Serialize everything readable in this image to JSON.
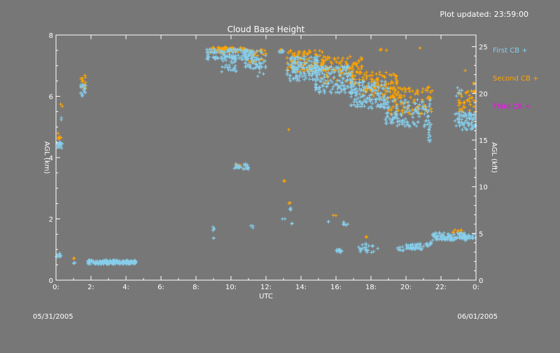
{
  "header": {
    "updated": "Plot updated: 23:59:00",
    "date_start": "05/31/2005",
    "date_end": "06/01/2005"
  },
  "colors": {
    "background": "#777777",
    "first": "#87ceeb",
    "second": "#ffa500",
    "third": "#ff00ff",
    "axes": "#ffffff"
  },
  "chart_data": {
    "type": "scatter",
    "title": "Cloud Base Height",
    "xlabel": "UTC",
    "ylabel": "AGL (km)",
    "y2label": "AGL (kft)",
    "xlim": [
      0,
      24
    ],
    "ylim": [
      0,
      8
    ],
    "y2lim": [
      0,
      26.25
    ],
    "xticks": [
      "0:",
      "2:",
      "4:",
      "6:",
      "8:",
      "10:",
      "12:",
      "14:",
      "16:",
      "18:",
      "20:",
      "22:",
      "0:"
    ],
    "xtick_values": [
      0,
      2,
      4,
      6,
      8,
      10,
      12,
      14,
      16,
      18,
      20,
      22,
      24
    ],
    "yticks": [
      "0",
      "2",
      "4",
      "6",
      "8"
    ],
    "ytick_values": [
      0,
      2,
      4,
      6,
      8
    ],
    "y2ticks": [
      "0",
      "5",
      "10",
      "15",
      "20",
      "25"
    ],
    "y2tick_values": [
      0,
      5,
      10,
      15,
      20,
      25
    ],
    "legend_position": "right",
    "marker": "+",
    "series": [
      {
        "name": "First CB",
        "marker_label": "+",
        "clusters": [
          {
            "x": [
              0.0,
              0.3
            ],
            "y": [
              0.75,
              0.9
            ],
            "n": 10
          },
          {
            "x": [
              0.05,
              0.4
            ],
            "y": [
              4.3,
              4.5
            ],
            "n": 22
          },
          {
            "x": [
              0.3,
              0.35
            ],
            "y": [
              5.2,
              5.3
            ],
            "n": 2
          },
          {
            "x": [
              1.0,
              1.1
            ],
            "y": [
              0.5,
              0.6
            ],
            "n": 3
          },
          {
            "x": [
              1.4,
              1.7
            ],
            "y": [
              6.0,
              6.4
            ],
            "n": 16
          },
          {
            "x": [
              1.8,
              4.6
            ],
            "y": [
              0.52,
              0.65
            ],
            "n": 170
          },
          {
            "x": [
              8.7,
              9.1
            ],
            "y": [
              1.6,
              1.75
            ],
            "n": 4
          },
          {
            "x": [
              9.0,
              9.2
            ],
            "y": [
              1.35,
              1.45
            ],
            "n": 2
          },
          {
            "x": [
              8.6,
              11.2
            ],
            "y": [
              7.2,
              7.55
            ],
            "n": 110
          },
          {
            "x": [
              9.4,
              10.3
            ],
            "y": [
              6.8,
              7.3
            ],
            "n": 30
          },
          {
            "x": [
              10.2,
              11.0
            ],
            "y": [
              3.6,
              3.8
            ],
            "n": 24
          },
          {
            "x": [
              11.1,
              11.4
            ],
            "y": [
              1.7,
              1.8
            ],
            "n": 3
          },
          {
            "x": [
              10.8,
              12.0
            ],
            "y": [
              6.9,
              7.5
            ],
            "n": 60
          },
          {
            "x": [
              11.5,
              11.9
            ],
            "y": [
              6.6,
              7.1
            ],
            "n": 12
          },
          {
            "x": [
              12.7,
              13.0
            ],
            "y": [
              7.4,
              7.55
            ],
            "n": 6
          },
          {
            "x": [
              12.8,
              13.1
            ],
            "y": [
              1.95,
              2.05
            ],
            "n": 2
          },
          {
            "x": [
              13.3,
              13.5
            ],
            "y": [
              2.2,
              2.4
            ],
            "n": 3
          },
          {
            "x": [
              13.2,
              13.5
            ],
            "y": [
              1.8,
              1.95
            ],
            "n": 2
          },
          {
            "x": [
              13.2,
              15.0
            ],
            "y": [
              6.5,
              7.3
            ],
            "n": 130
          },
          {
            "x": [
              14.8,
              17.0
            ],
            "y": [
              6.1,
              7.0
            ],
            "n": 150
          },
          {
            "x": [
              15.5,
              15.7
            ],
            "y": [
              1.9,
              2.0
            ],
            "n": 2
          },
          {
            "x": [
              16.0,
              16.4
            ],
            "y": [
              0.88,
              1.0
            ],
            "n": 14
          },
          {
            "x": [
              16.4,
              16.7
            ],
            "y": [
              1.75,
              1.9
            ],
            "n": 8
          },
          {
            "x": [
              16.8,
              19.0
            ],
            "y": [
              5.6,
              6.5
            ],
            "n": 140
          },
          {
            "x": [
              17.3,
              18.5
            ],
            "y": [
              0.9,
              1.2
            ],
            "n": 24
          },
          {
            "x": [
              18.8,
              21.5
            ],
            "y": [
              5.0,
              5.9
            ],
            "n": 120
          },
          {
            "x": [
              19.5,
              20.0
            ],
            "y": [
              0.95,
              1.1
            ],
            "n": 8
          },
          {
            "x": [
              20.0,
              21.0
            ],
            "y": [
              1.0,
              1.2
            ],
            "n": 45
          },
          {
            "x": [
              21.0,
              21.5
            ],
            "y": [
              1.1,
              1.25
            ],
            "n": 12
          },
          {
            "x": [
              21.2,
              21.4
            ],
            "y": [
              4.5,
              5.0
            ],
            "n": 10
          },
          {
            "x": [
              21.5,
              23.5
            ],
            "y": [
              1.3,
              1.55
            ],
            "n": 110
          },
          {
            "x": [
              23.5,
              24.0
            ],
            "y": [
              1.35,
              1.5
            ],
            "n": 14
          },
          {
            "x": [
              22.8,
              24.0
            ],
            "y": [
              4.9,
              5.5
            ],
            "n": 70
          },
          {
            "x": [
              22.8,
              23.2
            ],
            "y": [
              6.0,
              6.3
            ],
            "n": 6
          }
        ]
      },
      {
        "name": "Second CB",
        "marker_label": "+",
        "clusters": [
          {
            "x": [
              0.05,
              0.3
            ],
            "y": [
              4.5,
              4.8
            ],
            "n": 6
          },
          {
            "x": [
              0.2,
              0.4
            ],
            "y": [
              5.65,
              5.8
            ],
            "n": 2
          },
          {
            "x": [
              1.0,
              1.1
            ],
            "y": [
              0.7,
              0.75
            ],
            "n": 2
          },
          {
            "x": [
              1.4,
              1.7
            ],
            "y": [
              6.2,
              6.7
            ],
            "n": 12
          },
          {
            "x": [
              8.8,
              11.0
            ],
            "y": [
              7.4,
              7.6
            ],
            "n": 60
          },
          {
            "x": [
              10.3,
              10.7
            ],
            "y": [
              3.7,
              3.8
            ],
            "n": 3
          },
          {
            "x": [
              11.0,
              12.0
            ],
            "y": [
              7.1,
              7.55
            ],
            "n": 25
          },
          {
            "x": [
              12.8,
              13.0
            ],
            "y": [
              7.45,
              7.55
            ],
            "n": 3
          },
          {
            "x": [
              13.0,
              13.1
            ],
            "y": [
              3.2,
              3.3
            ],
            "n": 2
          },
          {
            "x": [
              13.3,
              13.4
            ],
            "y": [
              4.85,
              4.95
            ],
            "n": 1
          },
          {
            "x": [
              13.3,
              13.4
            ],
            "y": [
              2.5,
              2.65
            ],
            "n": 2
          },
          {
            "x": [
              13.2,
              15.5
            ],
            "y": [
              6.8,
              7.5
            ],
            "n": 100
          },
          {
            "x": [
              15.0,
              17.5
            ],
            "y": [
              6.4,
              7.3
            ],
            "n": 110
          },
          {
            "x": [
              15.8,
              16.0
            ],
            "y": [
              2.05,
              2.15
            ],
            "n": 2
          },
          {
            "x": [
              17.5,
              19.5
            ],
            "y": [
              5.9,
              6.8
            ],
            "n": 100
          },
          {
            "x": [
              17.7,
              17.8
            ],
            "y": [
              1.35,
              1.45
            ],
            "n": 2
          },
          {
            "x": [
              18.5,
              19.0
            ],
            "y": [
              7.5,
              7.6
            ],
            "n": 3
          },
          {
            "x": [
              19.0,
              21.5
            ],
            "y": [
              5.4,
              6.3
            ],
            "n": 90
          },
          {
            "x": [
              20.8,
              21.0
            ],
            "y": [
              7.5,
              7.6
            ],
            "n": 1
          },
          {
            "x": [
              22.5,
              23.2
            ],
            "y": [
              1.55,
              1.65
            ],
            "n": 8
          },
          {
            "x": [
              23.0,
              24.0
            ],
            "y": [
              5.5,
              6.2
            ],
            "n": 40
          },
          {
            "x": [
              23.2,
              23.4
            ],
            "y": [
              6.8,
              6.9
            ],
            "n": 1
          },
          {
            "x": [
              23.8,
              24.0
            ],
            "y": [
              6.3,
              6.5
            ],
            "n": 2
          }
        ]
      },
      {
        "name": "Third CB",
        "marker_label": "+",
        "clusters": []
      }
    ]
  }
}
